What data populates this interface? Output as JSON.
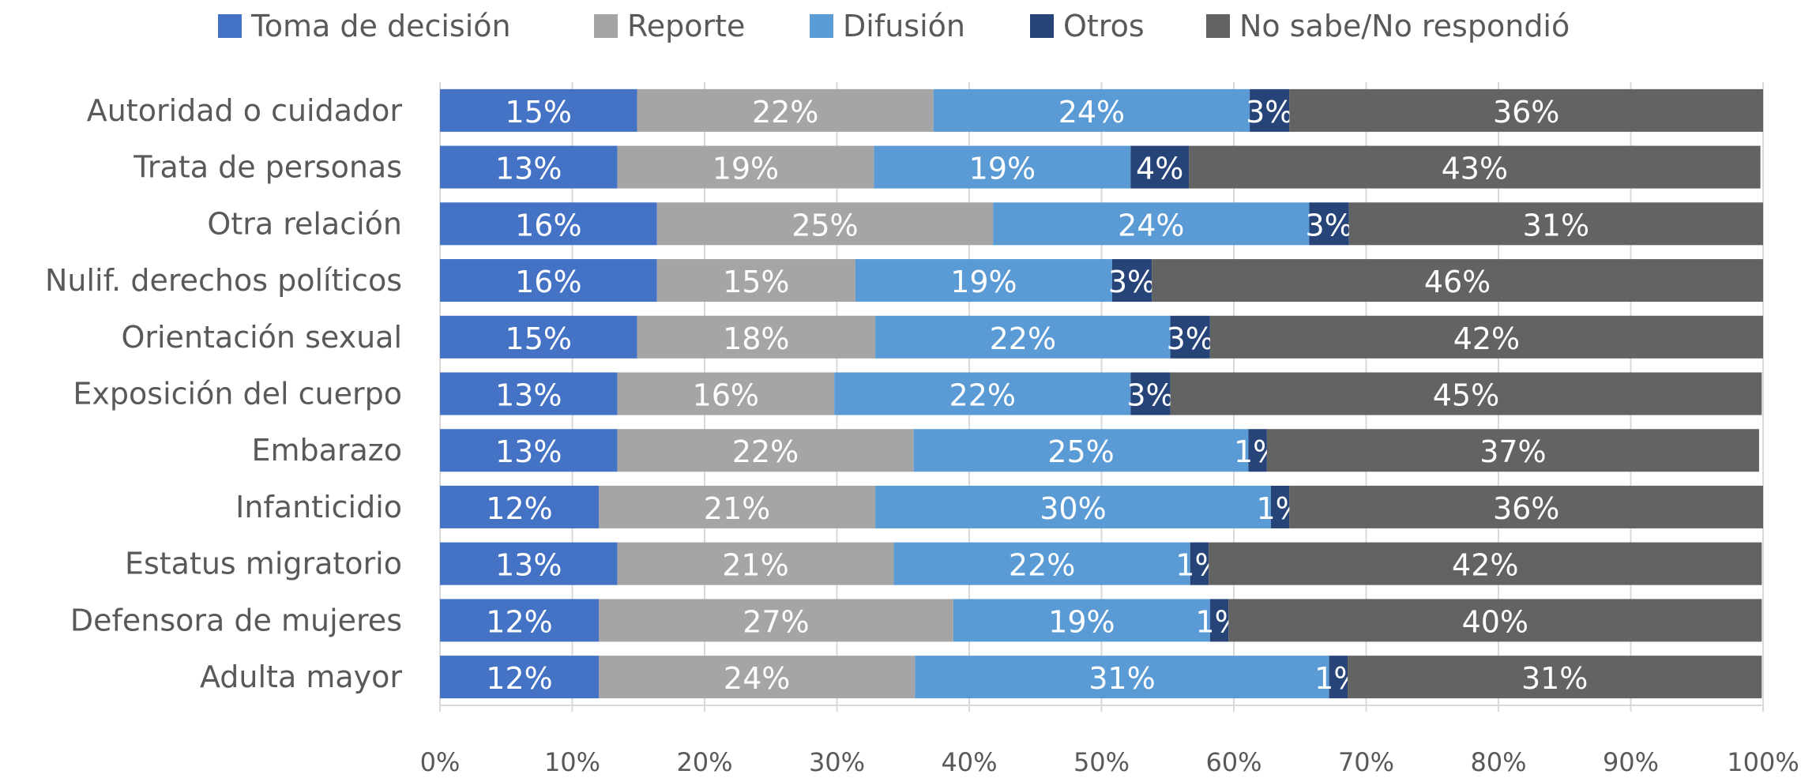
{
  "chart_data": {
    "type": "stacked_barh",
    "categories": [
      "Autoridad o cuidador",
      "Trata de personas",
      "Otra relación",
      "Nulif. derechos políticos",
      "Orientación sexual",
      "Exposición del cuerpo",
      "Embarazo",
      "Infanticidio",
      "Estatus migratorio",
      "Defensora de mujeres",
      "Adulta mayor"
    ],
    "series": [
      {
        "name": "Toma de decisión",
        "color": "#4472c4",
        "values": [
          14.9,
          13.4,
          16.4,
          16.4,
          14.9,
          13.4,
          13.4,
          12.0,
          13.4,
          12.0,
          12.0
        ],
        "value_labels": [
          "15%",
          "13%",
          "16%",
          "16%",
          "15%",
          "13%",
          "13%",
          "12%",
          "13%",
          "12%",
          "12%"
        ]
      },
      {
        "name": "Reporte",
        "color": "#a5a5a5",
        "values": [
          22.4,
          19.4,
          25.4,
          15.0,
          18.0,
          16.4,
          22.4,
          20.9,
          20.9,
          26.8,
          23.9
        ],
        "value_labels": [
          "22%",
          "19%",
          "25%",
          "15%",
          "18%",
          "16%",
          "22%",
          "21%",
          "21%",
          "27%",
          "24%"
        ]
      },
      {
        "name": "Difusión",
        "color": "#5b9bd5",
        "values": [
          23.9,
          19.4,
          23.9,
          19.4,
          22.3,
          22.4,
          25.3,
          29.9,
          22.4,
          19.4,
          31.3
        ],
        "value_labels": [
          "24%",
          "19%",
          "24%",
          "19%",
          "22%",
          "22%",
          "25%",
          "30%",
          "22%",
          "19%",
          "31%"
        ]
      },
      {
        "name": "Otros",
        "color": "#264478",
        "values": [
          3.0,
          4.4,
          3.0,
          3.0,
          3.0,
          3.0,
          1.4,
          1.4,
          1.4,
          1.4,
          1.4
        ],
        "value_labels": [
          "3%",
          "4%",
          "3%",
          "3%",
          "3%",
          "3%",
          "1%",
          "1%",
          "1%",
          "1%",
          "1%"
        ]
      },
      {
        "name": "No sabe/No respondió",
        "color": "#636363",
        "values": [
          35.8,
          43.2,
          31.3,
          46.2,
          41.8,
          44.7,
          37.2,
          35.8,
          41.8,
          40.3,
          31.3
        ],
        "value_labels": [
          "36%",
          "43%",
          "31%",
          "46%",
          "42%",
          "45%",
          "37%",
          "36%",
          "42%",
          "40%",
          "31%"
        ]
      }
    ],
    "xlim": [
      0,
      100
    ],
    "xticks": [
      {
        "value": 0,
        "label": "0%"
      },
      {
        "value": 10,
        "label": "10%"
      },
      {
        "value": 20,
        "label": "20%"
      },
      {
        "value": 30,
        "label": "30%"
      },
      {
        "value": 40,
        "label": "40%"
      },
      {
        "value": 50,
        "label": "50%"
      },
      {
        "value": 60,
        "label": "60%"
      },
      {
        "value": 70,
        "label": "70%"
      },
      {
        "value": 80,
        "label": "80%"
      },
      {
        "value": 90,
        "label": "90%"
      },
      {
        "value": 100,
        "label": "100%"
      }
    ],
    "grid": true,
    "legend": "top"
  }
}
